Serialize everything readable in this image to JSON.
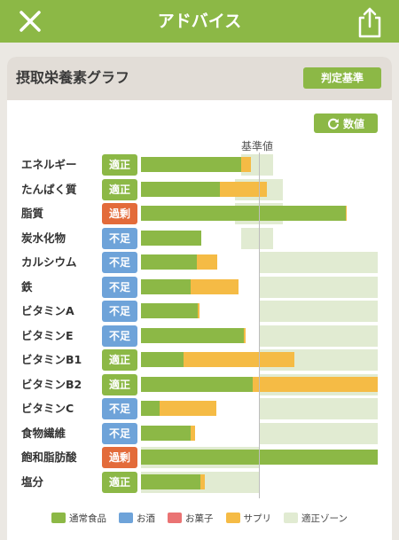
{
  "header": {
    "title": "アドバイス"
  },
  "card": {
    "title": "摂取栄養素グラフ",
    "criteria_button": "判定基準",
    "number_button": "数値",
    "baseline_label": "基準値"
  },
  "colors": {
    "brand": "#8cb846",
    "supplement": "#f5bb45",
    "zone": "#e1ebd2",
    "alcohol": "#6ea3d9",
    "snack": "#ea7373",
    "status_ok": "#8cb846",
    "status_low": "#6ea3d9",
    "status_over": "#e36b3a"
  },
  "status_colors": {
    "適正": "#8cb846",
    "不足": "#6ea3d9",
    "過剰": "#e36b3a"
  },
  "chart_data": {
    "type": "bar",
    "stacked": true,
    "reference_label": "基準値",
    "unit": "percent of reference value",
    "categories": [
      "エネルギー",
      "たんぱく質",
      "脂質",
      "炭水化物",
      "カルシウム",
      "鉄",
      "ビタミンA",
      "ビタミンE",
      "ビタミンB1",
      "ビタミンB2",
      "ビタミンC",
      "食物繊維",
      "飽和脂肪酸",
      "塩分"
    ],
    "status": [
      "適正",
      "適正",
      "過剰",
      "不足",
      "不足",
      "不足",
      "不足",
      "不足",
      "適正",
      "適正",
      "不足",
      "不足",
      "過剰",
      "適正"
    ],
    "series": [
      {
        "name": "通常食品",
        "color": "#8cb846",
        "values": [
          85,
          67,
          173,
          51,
          47,
          42,
          48,
          87,
          36,
          95,
          16,
          42,
          200,
          50
        ]
      },
      {
        "name": "お酒",
        "color": "#6ea3d9",
        "values": [
          0,
          0,
          0,
          0,
          0,
          0,
          0,
          0,
          0,
          0,
          0,
          0,
          0,
          0
        ]
      },
      {
        "name": "お菓子",
        "color": "#ea7373",
        "values": [
          0,
          0,
          0,
          0,
          0,
          0,
          0,
          0,
          0,
          0,
          0,
          0,
          0,
          0
        ]
      },
      {
        "name": "サプリ",
        "color": "#f5bb45",
        "values": [
          8,
          40,
          1,
          0,
          18,
          41,
          2,
          2,
          94,
          106,
          48,
          4,
          0,
          4
        ]
      }
    ],
    "ok_zone": [
      [
        85,
        112
      ],
      [
        80,
        120
      ],
      [
        80,
        120
      ],
      [
        85,
        112
      ],
      [
        100,
        200
      ],
      [
        100,
        200
      ],
      [
        100,
        200
      ],
      [
        100,
        200
      ],
      [
        100,
        200
      ],
      [
        100,
        200
      ],
      [
        100,
        200
      ],
      [
        100,
        200
      ],
      [
        0,
        100
      ],
      [
        0,
        100
      ]
    ],
    "xlim": [
      0,
      200
    ],
    "legend": [
      {
        "label": "通常食品",
        "color": "#8cb846"
      },
      {
        "label": "お酒",
        "color": "#6ea3d9"
      },
      {
        "label": "お菓子",
        "color": "#ea7373"
      },
      {
        "label": "サプリ",
        "color": "#f5bb45"
      },
      {
        "label": "適正ゾーン",
        "color": "#e1ebd2"
      }
    ]
  }
}
